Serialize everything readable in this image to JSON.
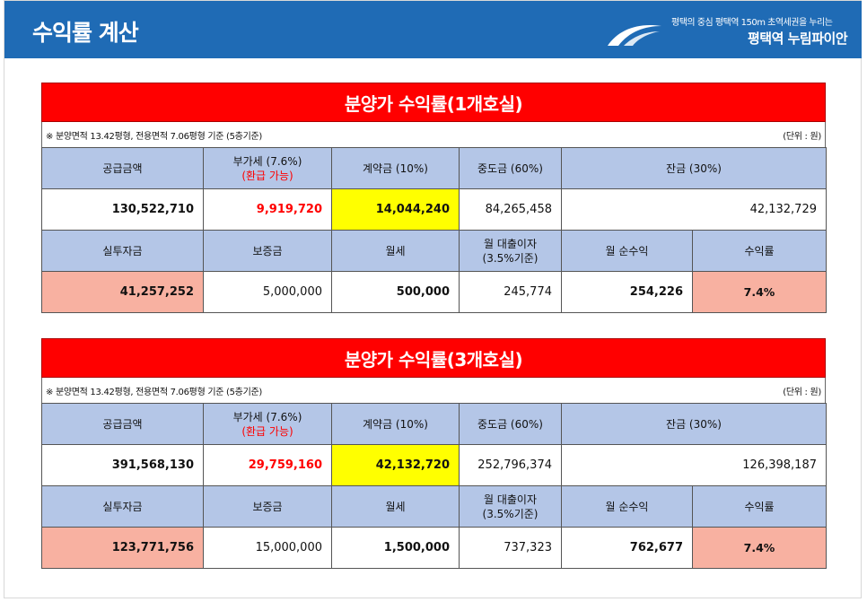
{
  "header": {
    "title": "수익률 계산",
    "brand_sub": "평택의 중심 평택역 150m 초역세권을 누리는",
    "brand_name": "평택역 누림파이안"
  },
  "labels": {
    "supply": "공급금액",
    "vat": "부가세 (7.6%)",
    "vat_note": "(환급 가능)",
    "contract": "계약금 (10%)",
    "middle": "중도금 (60%)",
    "balance": "잔금 (30%)",
    "actual": "실투자금",
    "deposit": "보증금",
    "rent": "월세",
    "loan_interest_1": "월 대출이자",
    "loan_interest_2": "(3.5%기준)",
    "net_income": "월 순수익",
    "yield": "수익률"
  },
  "sections": [
    {
      "title": "분양가 수익률(1개호실)",
      "note": "※ 분양면적 13.42평형, 전용면적 7.06평형 기준 (5층기준)",
      "unit": "(단위 : 원)",
      "supply": "130,522,710",
      "vat": "9,919,720",
      "contract": "14,044,240",
      "middle": "84,265,458",
      "balance": "42,132,729",
      "actual": "41,257,252",
      "deposit": "5,000,000",
      "rent": "500,000",
      "loan_interest": "245,774",
      "net_income": "254,226",
      "yield": "7.4%"
    },
    {
      "title": "분양가 수익률(3개호실)",
      "note": "※ 분양면적 13.42평형, 전용면적 7.06평형 기준 (5층기준)",
      "unit": "(단위 : 원)",
      "supply": "391,568,130",
      "vat": "29,759,160",
      "contract": "42,132,720",
      "middle": "252,796,374",
      "balance": "126,398,187",
      "actual": "123,771,756",
      "deposit": "15,000,000",
      "rent": "1,500,000",
      "loan_interest": "737,323",
      "net_income": "762,677",
      "yield": "7.4%"
    }
  ],
  "colors": {
    "header_bg": "#1f6bb5",
    "title_bg": "#ff0000",
    "head_cell": "#b4c6e7",
    "highlight_yellow": "#ffff00",
    "highlight_salmon": "#f8b1a1"
  }
}
